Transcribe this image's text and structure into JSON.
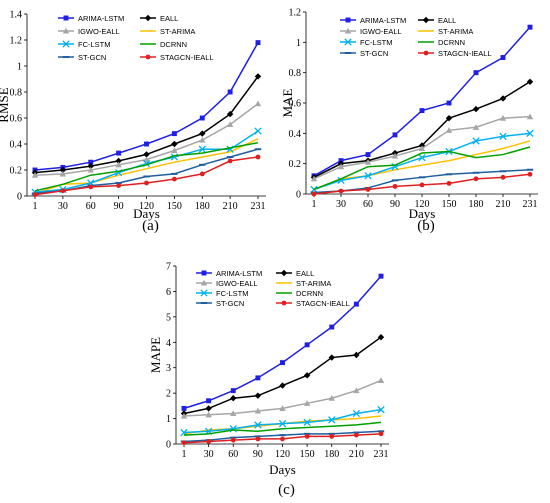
{
  "chart_data": [
    {
      "type": "line",
      "panel_label": "(a)",
      "xlabel": "Days",
      "ylabel": "RMSE",
      "categories": [
        "1",
        "30",
        "60",
        "90",
        "120",
        "150",
        "180",
        "210",
        "231"
      ],
      "ylim": [
        0,
        1.4
      ],
      "yticks": [
        "0",
        "0.2",
        "0.4",
        "0.6",
        "0.8",
        "1",
        "1.2",
        "1.4"
      ],
      "series": [
        {
          "name": "ARIMA-LSTM",
          "color": "#1f1fe6",
          "marker": "square",
          "values": [
            0.2,
            0.22,
            0.26,
            0.33,
            0.4,
            0.48,
            0.6,
            0.8,
            1.18
          ]
        },
        {
          "name": "EALL",
          "color": "#000000",
          "marker": "diamond",
          "values": [
            0.18,
            0.2,
            0.23,
            0.27,
            0.32,
            0.4,
            0.48,
            0.63,
            0.92
          ]
        },
        {
          "name": "IGWO-EALL",
          "color": "#a6a6a6",
          "marker": "triangle",
          "values": [
            0.16,
            0.17,
            0.2,
            0.24,
            0.28,
            0.35,
            0.43,
            0.55,
            0.71
          ]
        },
        {
          "name": "ST-ARIMA",
          "color": "#ffc000",
          "marker": "none",
          "values": [
            0.02,
            0.09,
            0.1,
            0.16,
            0.21,
            0.26,
            0.3,
            0.34,
            0.44
          ]
        },
        {
          "name": "FC-LSTM",
          "color": "#00b0f0",
          "marker": "x",
          "values": [
            0.03,
            0.05,
            0.1,
            0.18,
            0.25,
            0.3,
            0.36,
            0.36,
            0.5
          ]
        },
        {
          "name": "DCRNN",
          "color": "#00a000",
          "marker": "none",
          "values": [
            0.04,
            0.09,
            0.16,
            0.19,
            0.24,
            0.31,
            0.33,
            0.37,
            0.41
          ]
        },
        {
          "name": "ST-GCN",
          "color": "#1f5f9f",
          "marker": "dash",
          "values": [
            0.02,
            0.04,
            0.08,
            0.1,
            0.15,
            0.17,
            0.24,
            0.3,
            0.36
          ]
        },
        {
          "name": "STAGCN-IEALL",
          "color": "#e02020",
          "marker": "circle",
          "values": [
            0.01,
            0.04,
            0.07,
            0.08,
            0.1,
            0.13,
            0.17,
            0.27,
            0.3
          ]
        }
      ]
    },
    {
      "type": "line",
      "panel_label": "(b)",
      "xlabel": "Days",
      "ylabel": "MAE",
      "categories": [
        "1",
        "30",
        "60",
        "90",
        "120",
        "150",
        "180",
        "210",
        "231"
      ],
      "ylim": [
        0,
        1.2
      ],
      "yticks": [
        "0",
        "0.2",
        "0.4",
        "0.6",
        "0.8",
        "1",
        "1.2"
      ],
      "series": [
        {
          "name": "ARIMA-LSTM",
          "color": "#1f1fe6",
          "marker": "square",
          "values": [
            0.12,
            0.22,
            0.26,
            0.39,
            0.55,
            0.6,
            0.8,
            0.9,
            1.1
          ]
        },
        {
          "name": "EALL",
          "color": "#000000",
          "marker": "diamond",
          "values": [
            0.11,
            0.2,
            0.22,
            0.27,
            0.32,
            0.5,
            0.56,
            0.63,
            0.74
          ]
        },
        {
          "name": "IGWO-EALL",
          "color": "#a6a6a6",
          "marker": "triangle",
          "values": [
            0.1,
            0.18,
            0.21,
            0.25,
            0.3,
            0.42,
            0.44,
            0.5,
            0.51
          ]
        },
        {
          "name": "ST-ARIMA",
          "color": "#ffc000",
          "marker": "none",
          "values": [
            0.03,
            0.1,
            0.12,
            0.16,
            0.19,
            0.22,
            0.26,
            0.3,
            0.35
          ]
        },
        {
          "name": "FC-LSTM",
          "color": "#00b0f0",
          "marker": "x",
          "values": [
            0.03,
            0.09,
            0.12,
            0.18,
            0.24,
            0.28,
            0.35,
            0.38,
            0.4
          ]
        },
        {
          "name": "DCRNN",
          "color": "#00a000",
          "marker": "none",
          "values": [
            0.03,
            0.1,
            0.18,
            0.19,
            0.27,
            0.28,
            0.24,
            0.26,
            0.31
          ]
        },
        {
          "name": "ST-GCN",
          "color": "#1f5f9f",
          "marker": "dash",
          "values": [
            0.01,
            0.02,
            0.04,
            0.09,
            0.11,
            0.13,
            0.14,
            0.15,
            0.16
          ]
        },
        {
          "name": "STAGCN-IEALL",
          "color": "#e02020",
          "marker": "circle",
          "values": [
            0.0,
            0.02,
            0.03,
            0.05,
            0.06,
            0.07,
            0.1,
            0.11,
            0.13
          ]
        }
      ]
    },
    {
      "type": "line",
      "panel_label": "(c)",
      "xlabel": "Days",
      "ylabel": "MAPE",
      "categories": [
        "1",
        "30",
        "60",
        "90",
        "120",
        "150",
        "180",
        "210",
        "231"
      ],
      "ylim": [
        0,
        7
      ],
      "yticks": [
        "0",
        "1",
        "2",
        "3",
        "4",
        "5",
        "6",
        "7"
      ],
      "series": [
        {
          "name": "ARIMA-LSTM",
          "color": "#1f1fe6",
          "marker": "square",
          "values": [
            1.4,
            1.7,
            2.1,
            2.6,
            3.2,
            3.9,
            4.6,
            5.5,
            6.6
          ]
        },
        {
          "name": "EALL",
          "color": "#000000",
          "marker": "diamond",
          "values": [
            1.2,
            1.4,
            1.8,
            1.9,
            2.3,
            2.7,
            3.4,
            3.5,
            4.2
          ]
        },
        {
          "name": "IGWO-EALL",
          "color": "#a6a6a6",
          "marker": "triangle",
          "values": [
            1.1,
            1.15,
            1.2,
            1.3,
            1.4,
            1.6,
            1.8,
            2.1,
            2.5
          ]
        },
        {
          "name": "ST-ARIMA",
          "color": "#ffc000",
          "marker": "none",
          "values": [
            0.4,
            0.55,
            0.6,
            0.7,
            0.8,
            0.9,
            0.95,
            1.0,
            1.1
          ]
        },
        {
          "name": "FC-LSTM",
          "color": "#00b0f0",
          "marker": "x",
          "values": [
            0.45,
            0.5,
            0.6,
            0.75,
            0.8,
            0.85,
            0.95,
            1.2,
            1.35
          ]
        },
        {
          "name": "DCRNN",
          "color": "#00a000",
          "marker": "none",
          "values": [
            0.35,
            0.4,
            0.55,
            0.5,
            0.6,
            0.65,
            0.7,
            0.75,
            0.85
          ]
        },
        {
          "name": "ST-GCN",
          "color": "#1f5f9f",
          "marker": "dash",
          "values": [
            0.1,
            0.15,
            0.25,
            0.3,
            0.35,
            0.4,
            0.4,
            0.45,
            0.5
          ]
        },
        {
          "name": "STAGCN-IEALL",
          "color": "#e02020",
          "marker": "circle",
          "values": [
            0.05,
            0.1,
            0.15,
            0.2,
            0.2,
            0.3,
            0.3,
            0.35,
            0.4
          ]
        }
      ]
    }
  ]
}
